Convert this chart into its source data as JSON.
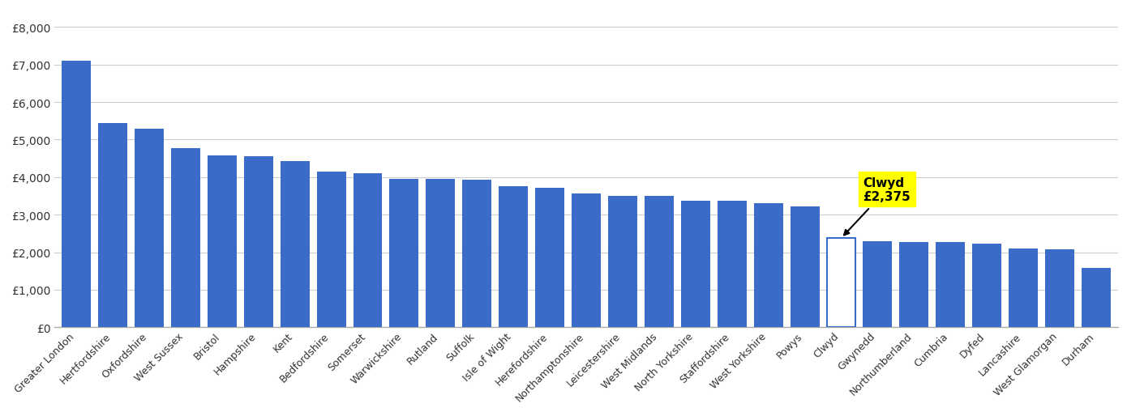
{
  "categories": [
    "Greater London",
    "Hertfordshire",
    "Oxfordshire",
    "West Sussex",
    "Bristol",
    "Hampshire",
    "Kent",
    "Bedfordshire",
    "Somerset",
    "Warwickshire",
    "Rutland",
    "Suffolk",
    "Isle of Wight",
    "Herefordshire",
    "Northamptonshire",
    "Leicestershire",
    "West Midlands",
    "North Yorkshire",
    "Staffordshire",
    "West Yorkshire",
    "Powys",
    "Clwyd",
    "Gwynedd",
    "Northumberland",
    "Cumbria",
    "Dyfed",
    "Lancashire",
    "West Glamorgan",
    "Durham"
  ],
  "values": [
    7100,
    5450,
    5300,
    4780,
    4570,
    4560,
    4420,
    4150,
    4100,
    3960,
    3950,
    3940,
    3760,
    3720,
    3560,
    3510,
    3490,
    3370,
    3360,
    3310,
    3220,
    2375,
    2290,
    2270,
    2265,
    2220,
    2100,
    2070,
    1580
  ],
  "highlight_index": 21,
  "highlight_label": "Clwyd",
  "highlight_value": "£2,375",
  "bar_color": "#3a6bc9",
  "highlight_bar_color": "#ffffff",
  "highlight_bar_edge_color": "#3a6bc9",
  "annotation_bg_color": "#ffff00",
  "annotation_text_color": "#000000",
  "ylim_max": 8500,
  "yticks": [
    0,
    1000,
    2000,
    3000,
    4000,
    5000,
    6000,
    7000,
    8000
  ],
  "ytick_labels": [
    "£0",
    "£1,000",
    "£2,000",
    "£3,000",
    "£4,000",
    "£5,000",
    "£6,000",
    "£7,000",
    "£8,000"
  ],
  "background_color": "#ffffff",
  "grid_color": "#cccccc"
}
